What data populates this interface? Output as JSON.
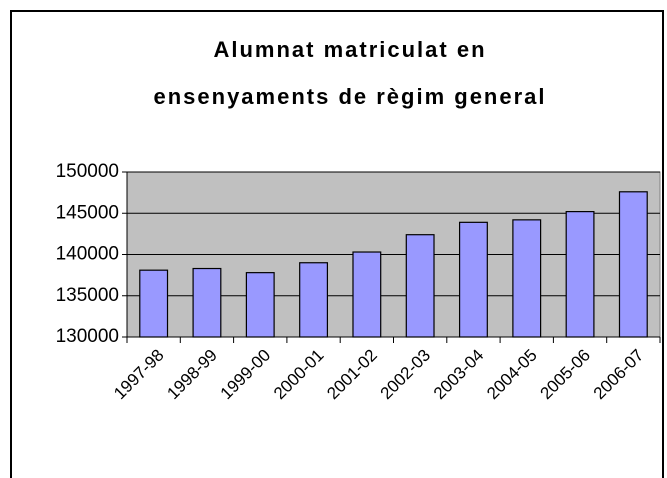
{
  "chart_data": {
    "type": "bar",
    "title": [
      "Alumnat matriculat en",
      "ensenyaments de règim general"
    ],
    "categories": [
      "1997-98",
      "1998-99",
      "1999-00",
      "2000-01",
      "2001-02",
      "2002-03",
      "2003-04",
      "2004-05",
      "2005-06",
      "2006-07"
    ],
    "values": [
      138100,
      138300,
      137800,
      139000,
      140300,
      142400,
      143900,
      144200,
      145200,
      147600
    ],
    "color": "#9999ff",
    "ylim": [
      130000,
      150000
    ],
    "yticks": [
      130000,
      135000,
      140000,
      145000,
      150000
    ],
    "grid": true
  }
}
